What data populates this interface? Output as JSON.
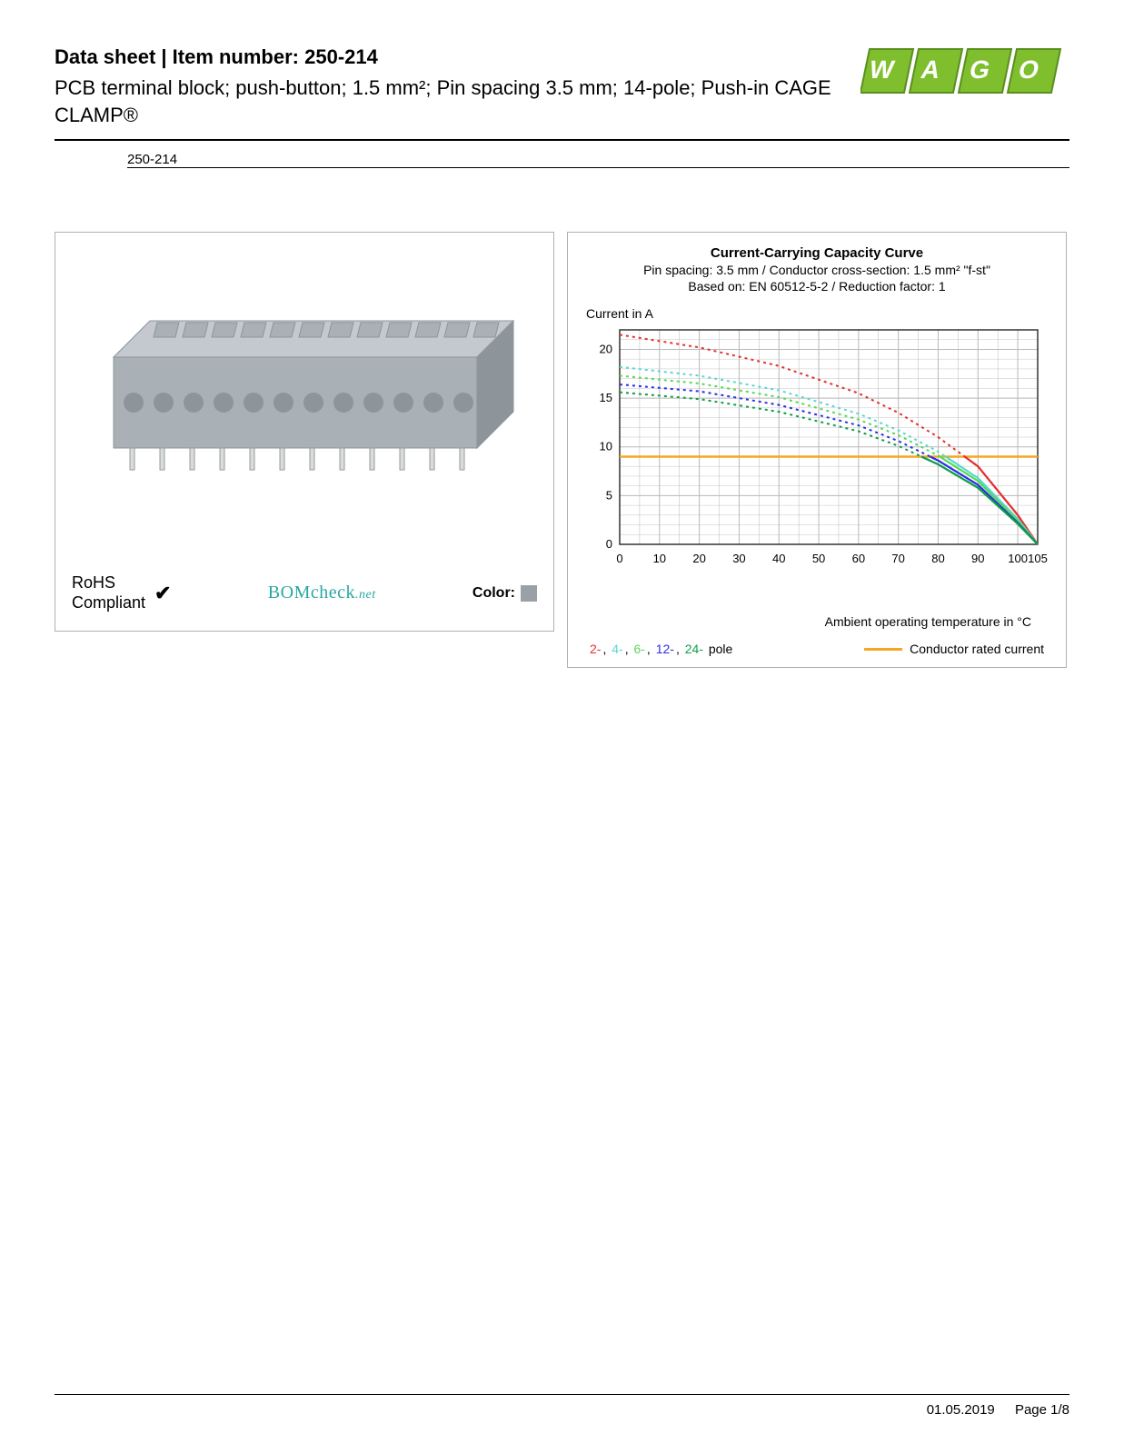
{
  "header": {
    "title": "Data sheet  |  Item number: 250-214",
    "subtitle": "PCB terminal block; push-button; 1.5 mm²; Pin spacing 3.5 mm; 14-pole; Push-in CAGE CLAMP®",
    "item_link": "250-214"
  },
  "logo": {
    "text": "WAGO",
    "fill": "#7fbf2e",
    "stroke": "#5a8f1f"
  },
  "product_image": {
    "body_color": "#a9b0b6",
    "body_shadow": "#8d949a",
    "body_light": "#c3c9ce",
    "pin_color": "#d9dcdd"
  },
  "badges": {
    "rohs_line1": "RoHS",
    "rohs_line2": "Compliant",
    "bomcheck_main": "BOMcheck",
    "bomcheck_suffix": ".net",
    "color_label": "Color:",
    "color_swatch": "#9aa0a6"
  },
  "chart": {
    "title": "Current-Carrying Capacity Curve",
    "subtitle1": "Pin spacing: 3.5 mm / Conductor cross-section: 1.5 mm² \"f-st\"",
    "subtitle2": "Based on: EN 60512-5-2 / Reduction factor: 1",
    "ylabel": "Current in A",
    "xlabel": "Ambient operating temperature in °C",
    "xlim": [
      0,
      105
    ],
    "ylim": [
      0,
      22
    ],
    "xtick_major": [
      0,
      10,
      20,
      30,
      40,
      50,
      60,
      70,
      80,
      90,
      100,
      105
    ],
    "xtick_labels": [
      "0",
      "10",
      "20",
      "30",
      "40",
      "50",
      "60",
      "70",
      "80",
      "90",
      "100",
      "105"
    ],
    "ytick_major": [
      0,
      5,
      10,
      15,
      20
    ],
    "grid_color": "#b8b8b8",
    "border_color": "#333333",
    "background": "#ffffff",
    "rated_current_value": 9,
    "rated_current_color": "#f5a623",
    "poles": [
      {
        "name": "2",
        "color": "#e62e2e",
        "data": [
          [
            0,
            21.5
          ],
          [
            20,
            20.2
          ],
          [
            40,
            18.3
          ],
          [
            60,
            15.5
          ],
          [
            70,
            13.5
          ],
          [
            80,
            11.0
          ],
          [
            90,
            8.0
          ],
          [
            100,
            3.0
          ],
          [
            105,
            0
          ]
        ]
      },
      {
        "name": "4",
        "color": "#58d8d0",
        "data": [
          [
            0,
            18.2
          ],
          [
            20,
            17.3
          ],
          [
            40,
            15.8
          ],
          [
            60,
            13.4
          ],
          [
            70,
            11.7
          ],
          [
            80,
            9.5
          ],
          [
            90,
            6.8
          ],
          [
            100,
            2.6
          ],
          [
            105,
            0
          ]
        ]
      },
      {
        "name": "6",
        "color": "#58d858",
        "data": [
          [
            0,
            17.3
          ],
          [
            20,
            16.5
          ],
          [
            40,
            15.1
          ],
          [
            60,
            12.8
          ],
          [
            70,
            11.2
          ],
          [
            80,
            9.1
          ],
          [
            90,
            6.5
          ],
          [
            100,
            2.4
          ],
          [
            105,
            0
          ]
        ]
      },
      {
        "name": "12",
        "color": "#2e2ee6",
        "data": [
          [
            0,
            16.4
          ],
          [
            20,
            15.7
          ],
          [
            40,
            14.3
          ],
          [
            60,
            12.2
          ],
          [
            70,
            10.6
          ],
          [
            80,
            8.6
          ],
          [
            90,
            6.1
          ],
          [
            100,
            2.2
          ],
          [
            105,
            0
          ]
        ]
      },
      {
        "name": "24",
        "color": "#0e9e4a",
        "data": [
          [
            0,
            15.6
          ],
          [
            20,
            14.9
          ],
          [
            40,
            13.6
          ],
          [
            60,
            11.6
          ],
          [
            70,
            10.1
          ],
          [
            80,
            8.2
          ],
          [
            90,
            5.8
          ],
          [
            100,
            2.1
          ],
          [
            105,
            0
          ]
        ]
      }
    ],
    "legend_poles_label": "pole",
    "legend_rated_label": "Conductor rated current"
  },
  "footer": {
    "date": "01.05.2019",
    "page": "Page 1/8"
  }
}
